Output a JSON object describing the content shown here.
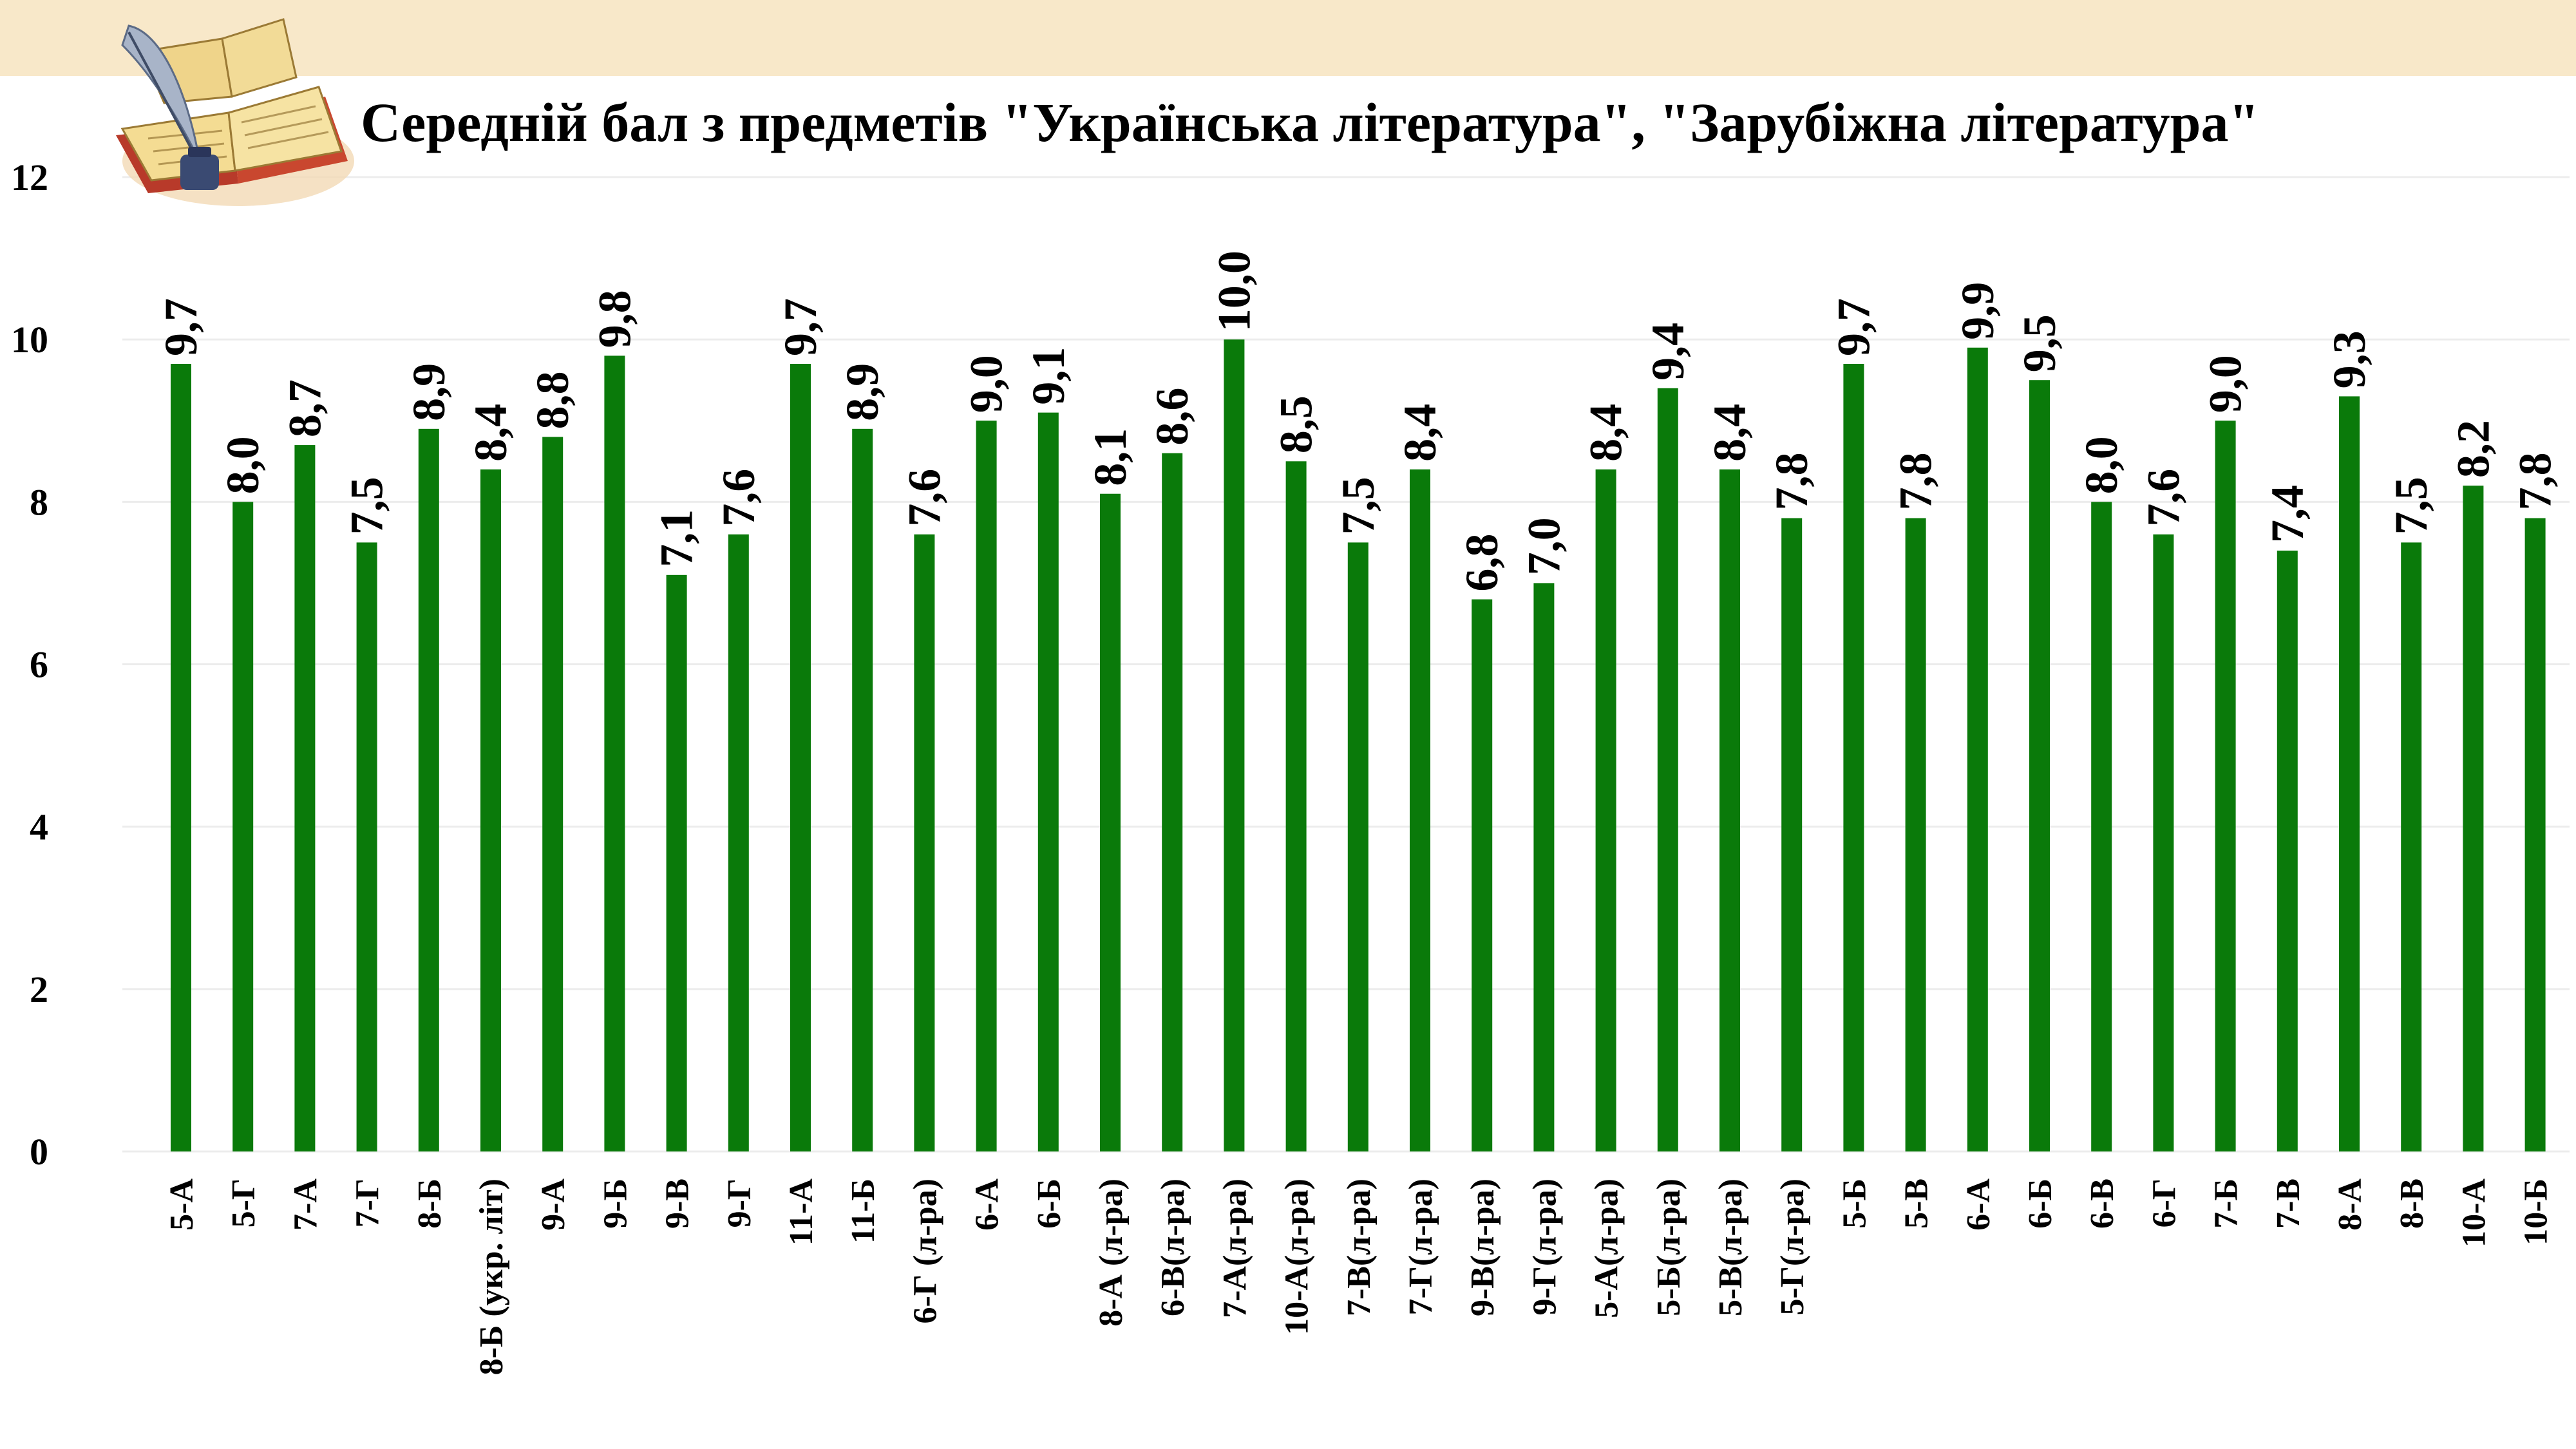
{
  "chart_data": {
    "type": "bar",
    "title": "Середній бал з предметів \"Українська література\", \"Зарубіжна література\"",
    "categories": [
      "5-А",
      "5-Г",
      "7-А",
      "7-Г",
      "8-Б",
      "8-Б (укр. літ)",
      "9-А",
      "9-Б",
      "9-В",
      "9-Г",
      "11-А",
      "11-Б",
      "6-Г (л-ра)",
      "6-А",
      "6-Б",
      "8-А (л-ра)",
      "6-В(л-ра)",
      "7-А(л-ра)",
      "10-А(л-ра)",
      "7-В(л-ра)",
      "7-Г(л-ра)",
      "9-В(л-ра)",
      "9-Г(л-ра)",
      "5-А(л-ра)",
      "5-Б(л-ра)",
      "5-В(л-ра)",
      "5-Г(л-ра)",
      "5-Б",
      "5-В",
      "6-А",
      "6-Б",
      "6-В",
      "6-Г",
      "7-Б",
      "7-В",
      "8-А",
      "8-В",
      "10-А",
      "10-Б"
    ],
    "values": [
      9.7,
      8.0,
      8.7,
      7.5,
      8.9,
      8.4,
      8.8,
      9.8,
      7.1,
      7.6,
      9.7,
      8.9,
      7.6,
      9.0,
      9.1,
      8.1,
      8.6,
      10.0,
      8.5,
      7.5,
      8.4,
      6.8,
      7.0,
      8.4,
      9.4,
      8.4,
      7.8,
      9.7,
      7.8,
      9.9,
      9.5,
      8.0,
      7.6,
      9.0,
      7.4,
      9.3,
      7.5,
      8.2,
      7.8
    ],
    "value_labels": [
      "9,7",
      "8,0",
      "8,7",
      "7,5",
      "8,9",
      "8,4",
      "8,8",
      "9,8",
      "7,1",
      "7,6",
      "9,7",
      "8,9",
      "7,6",
      "9,0",
      "9,1",
      "8,1",
      "8,6",
      "10,0",
      "8,5",
      "7,5",
      "8,4",
      "6,8",
      "7,0",
      "8,4",
      "9,4",
      "8,4",
      "7,8",
      "9,7",
      "7,8",
      "9,9",
      "9,5",
      "8,0",
      "7,6",
      "9,0",
      "7,4",
      "9,3",
      "7,5",
      "8,2",
      "7,8"
    ],
    "yticks": [
      "0",
      "2",
      "4",
      "6",
      "8",
      "10",
      "12"
    ],
    "ylim": [
      0,
      12
    ],
    "xlabel": "",
    "ylabel": "",
    "grid": true,
    "legend": "none",
    "colors": {
      "bar": "#0a7a0a",
      "grid": "#ececec",
      "band": "#f8e8c9"
    }
  },
  "icons": {
    "logo": "open-book-quill-icon"
  }
}
